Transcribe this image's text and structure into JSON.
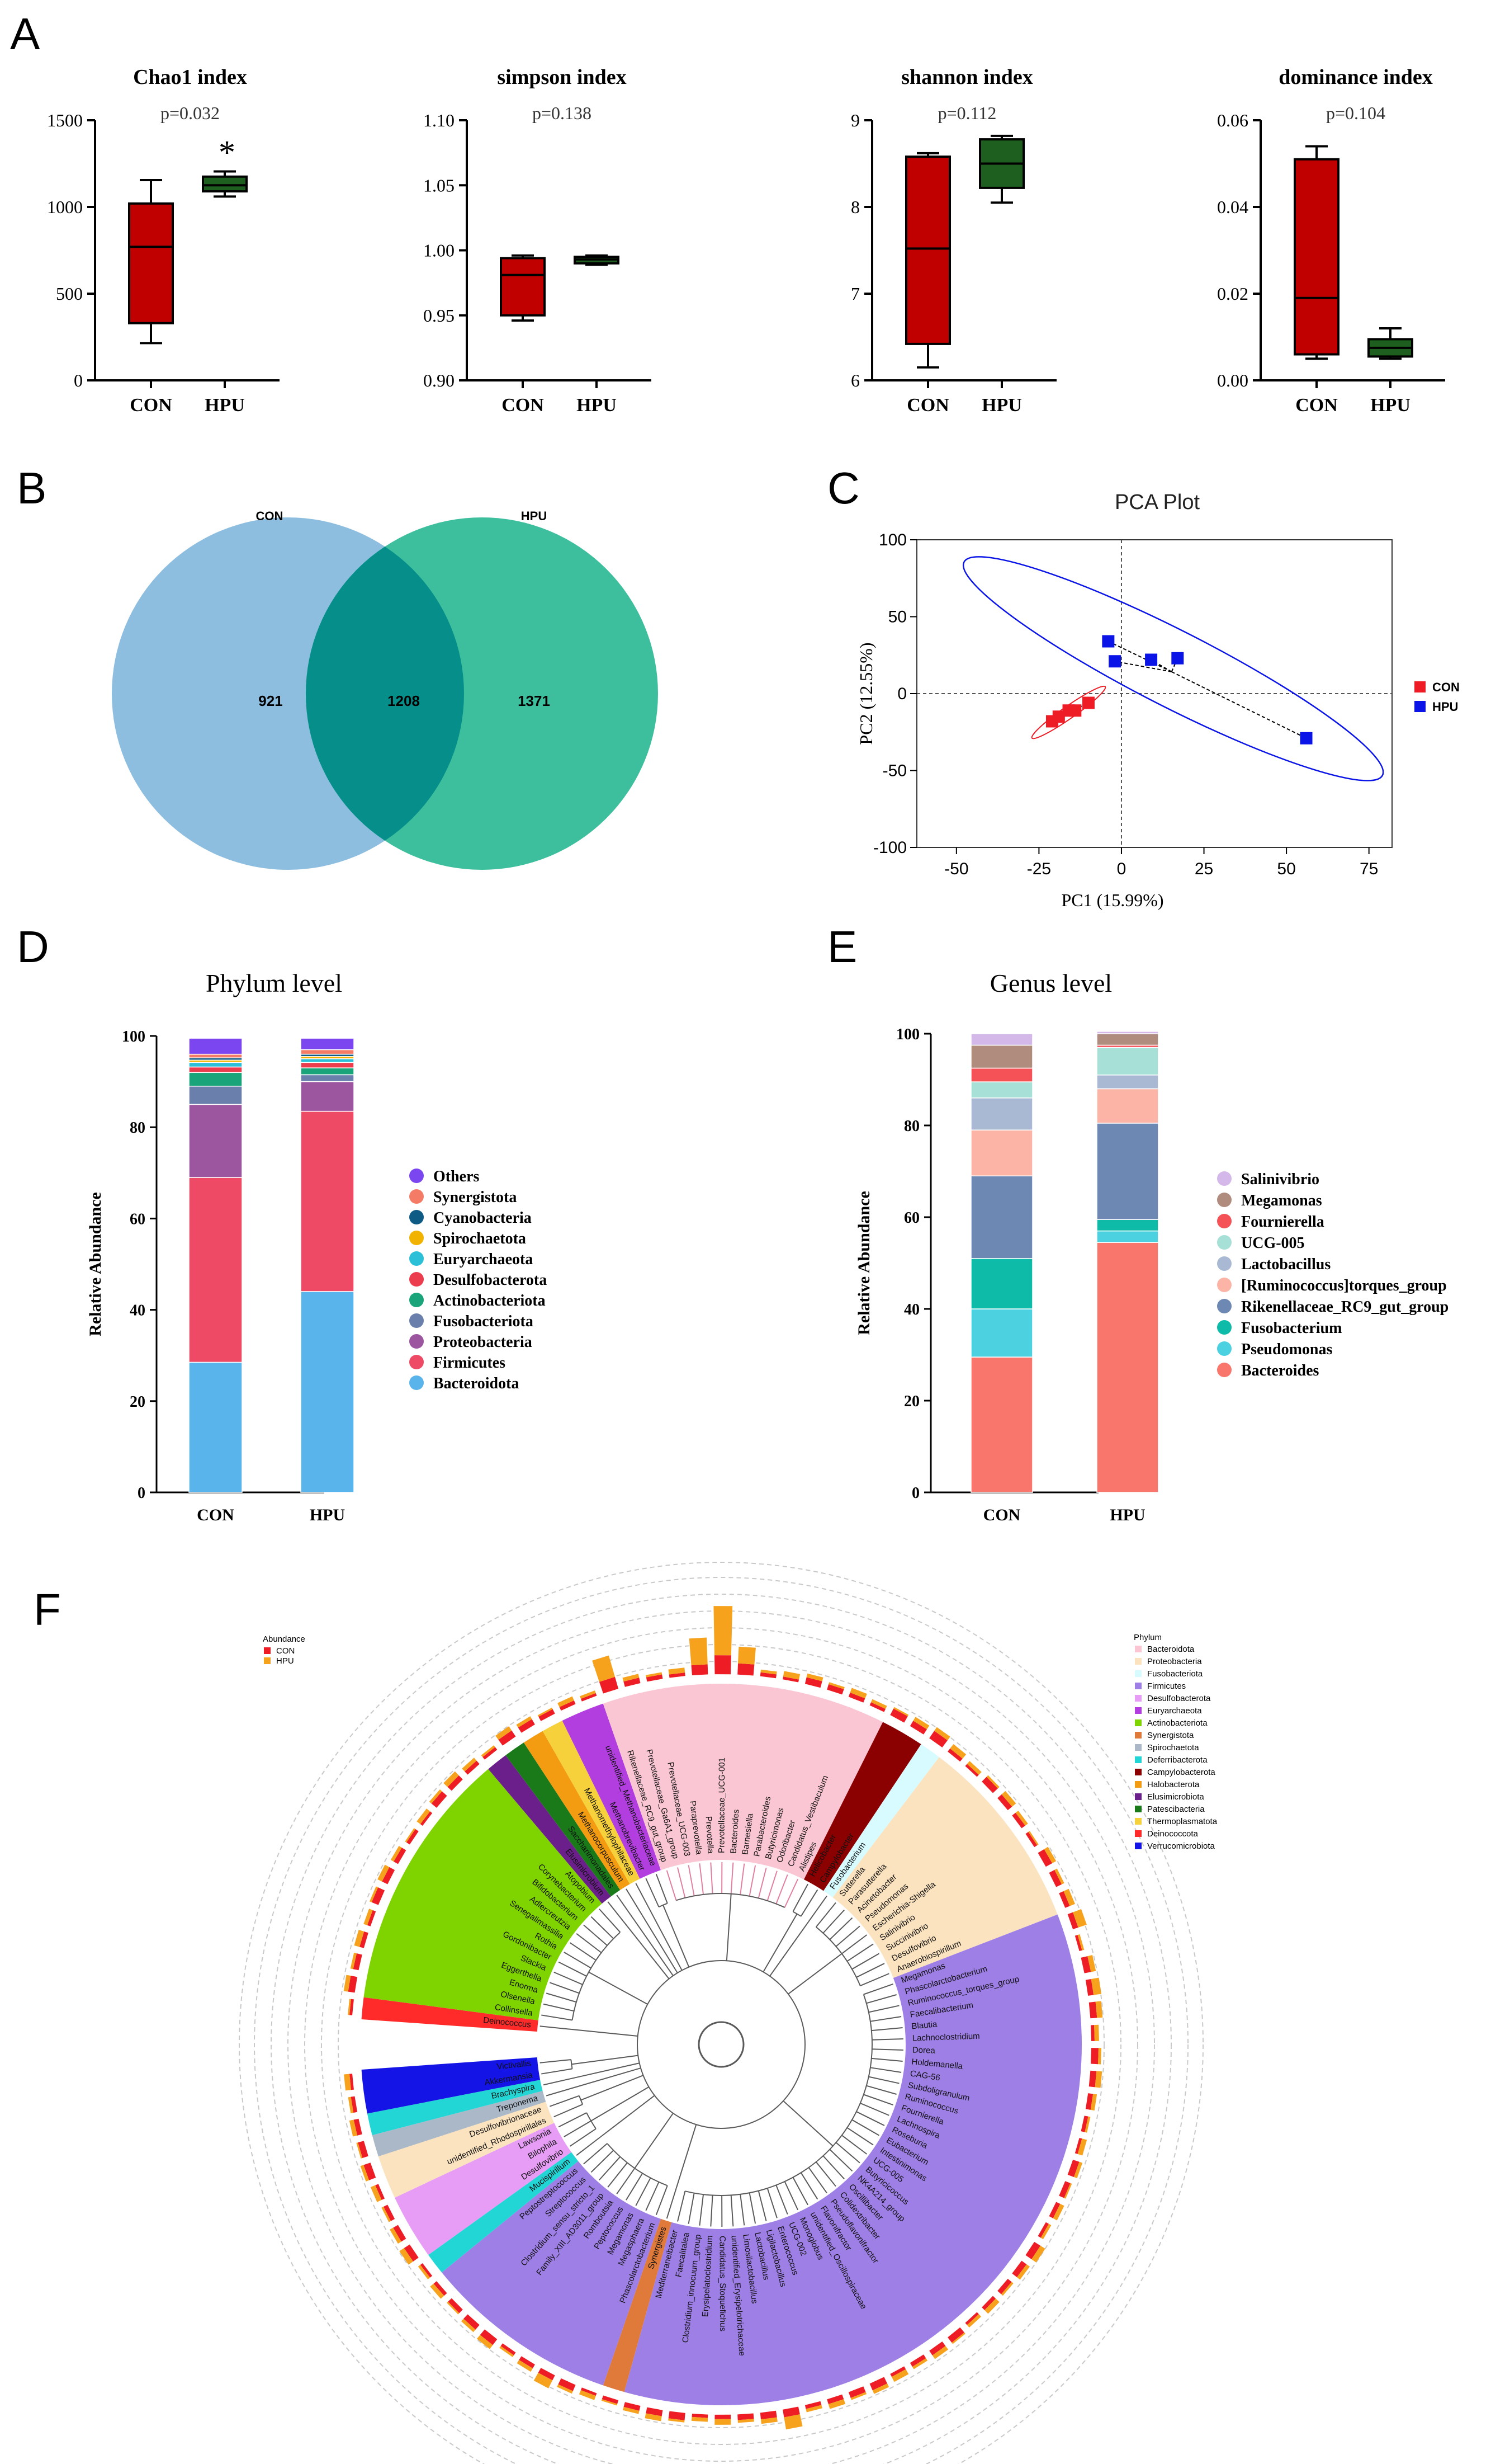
{
  "panels": {
    "A": "A",
    "B": "B",
    "C": "C",
    "D": "D",
    "E": "E",
    "F": "F"
  },
  "groups": [
    "CON",
    "HPU"
  ],
  "chart_data": [
    {
      "id": "A1",
      "type": "box",
      "title": "Chao1 index",
      "pvalue": "p=0.032",
      "star": "*",
      "ylim": [
        0,
        1500
      ],
      "ticks": [
        0,
        500,
        1000,
        1500
      ],
      "boxes": [
        {
          "group": "CON",
          "min": 215,
          "q1": 330,
          "median": 770,
          "q3": 1020,
          "max": 1155,
          "color": "#c00000"
        },
        {
          "group": "HPU",
          "min": 1060,
          "q1": 1090,
          "median": 1125,
          "q3": 1175,
          "max": 1205,
          "color": "#1e5e1e"
        }
      ]
    },
    {
      "id": "A2",
      "type": "box",
      "title": "simpson index",
      "pvalue": "p=0.138",
      "ylim": [
        0.9,
        1.1
      ],
      "ticks": [
        0.9,
        0.95,
        1.0,
        1.05,
        1.1
      ],
      "boxes": [
        {
          "group": "CON",
          "min": 0.946,
          "q1": 0.95,
          "median": 0.981,
          "q3": 0.994,
          "max": 0.996,
          "color": "#c00000"
        },
        {
          "group": "HPU",
          "min": 0.989,
          "q1": 0.99,
          "median": 0.993,
          "q3": 0.995,
          "max": 0.996,
          "color": "#1e5e1e"
        }
      ]
    },
    {
      "id": "A3",
      "type": "box",
      "title": "shannon index",
      "pvalue": "p=0.112",
      "ylim": [
        6,
        9
      ],
      "ticks": [
        6,
        7,
        8,
        9
      ],
      "boxes": [
        {
          "group": "CON",
          "min": 6.15,
          "q1": 6.42,
          "median": 7.52,
          "q3": 8.58,
          "max": 8.62,
          "color": "#c00000"
        },
        {
          "group": "HPU",
          "min": 8.05,
          "q1": 8.22,
          "median": 8.5,
          "q3": 8.78,
          "max": 8.82,
          "color": "#1e5e1e"
        }
      ]
    },
    {
      "id": "A4",
      "type": "box",
      "title": "dominance index",
      "pvalue": "p=0.104",
      "ylim": [
        0,
        0.06
      ],
      "ticks": [
        0.0,
        0.02,
        0.04,
        0.06
      ],
      "boxes": [
        {
          "group": "CON",
          "min": 0.005,
          "q1": 0.006,
          "median": 0.019,
          "q3": 0.051,
          "max": 0.054,
          "color": "#c00000"
        },
        {
          "group": "HPU",
          "min": 0.005,
          "q1": 0.0055,
          "median": 0.0075,
          "q3": 0.0095,
          "max": 0.012,
          "color": "#1e5e1e"
        }
      ]
    },
    {
      "id": "B",
      "type": "venn",
      "labels": [
        "CON",
        "HPU"
      ],
      "only_a": "921",
      "shared": "1208",
      "only_b": "1371",
      "colors": {
        "a": "#8dbedf",
        "b": "#3dbf9e",
        "overlap": "#068f8a"
      }
    },
    {
      "id": "C",
      "type": "scatter",
      "title": "PCA Plot",
      "xlabel": "PC1 (15.99%)",
      "ylabel": "PC2 (12.55%)",
      "xlim": [
        -62,
        82
      ],
      "ylim": [
        -100,
        100
      ],
      "xticks": [
        -50,
        -25,
        0,
        25,
        50,
        75
      ],
      "yticks": [
        -100,
        -50,
        0,
        50,
        100
      ],
      "series": [
        {
          "name": "CON",
          "color": "#ee1c25",
          "points": [
            [
              -21,
              -18
            ],
            [
              -19,
              -15
            ],
            [
              -16,
              -11
            ],
            [
              -14,
              -11
            ],
            [
              -10,
              -6
            ]
          ]
        },
        {
          "name": "HPU",
          "color": "#0a14e6",
          "points": [
            [
              -4,
              34
            ],
            [
              -2,
              21
            ],
            [
              9,
              22
            ],
            [
              17,
              23
            ],
            [
              56,
              -29
            ]
          ]
        }
      ]
    },
    {
      "id": "D",
      "type": "stacked-bar",
      "title": "Phylum level",
      "ylabel": "Relative Abundance",
      "categories": [
        "CON",
        "HPU"
      ],
      "ylim": [
        0,
        100
      ],
      "ticks": [
        0,
        20,
        40,
        60,
        80,
        100
      ],
      "series": [
        {
          "name": "Bacteroidota",
          "color": "#5ab4ec",
          "values": [
            28.5,
            44
          ]
        },
        {
          "name": "Firmicutes",
          "color": "#ef4a65",
          "values": [
            40.5,
            39.5
          ]
        },
        {
          "name": "Proteobacteria",
          "color": "#9c56a0",
          "values": [
            16,
            6.5
          ]
        },
        {
          "name": "Fusobacteriota",
          "color": "#6b7fad",
          "values": [
            4,
            1.5
          ]
        },
        {
          "name": "Actinobacteriota",
          "color": "#19a479",
          "values": [
            3,
            1.5
          ]
        },
        {
          "name": "Desulfobacterota",
          "color": "#ec3d4e",
          "values": [
            1.2,
            1.2
          ]
        },
        {
          "name": "Euryarchaeota",
          "color": "#2bc0d8",
          "values": [
            1,
            0.8
          ]
        },
        {
          "name": "Spirochaetota",
          "color": "#f2b300",
          "values": [
            0.5,
            0.5
          ]
        },
        {
          "name": "Cyanobacteria",
          "color": "#0e5c86",
          "values": [
            0.5,
            0.5
          ]
        },
        {
          "name": "Synergistota",
          "color": "#f47c66",
          "values": [
            0.8,
            1
          ]
        },
        {
          "name": "Others",
          "color": "#7b46f0",
          "values": [
            3.5,
            2.5
          ]
        }
      ]
    },
    {
      "id": "E",
      "type": "stacked-bar",
      "title": "Genus level",
      "ylabel": "Relative Abundance",
      "categories": [
        "CON",
        "HPU"
      ],
      "ylim": [
        0,
        100
      ],
      "ticks": [
        0,
        20,
        40,
        60,
        80,
        100
      ],
      "series": [
        {
          "name": "Bacteroides",
          "color": "#f9766c",
          "values": [
            29.5,
            54.5
          ]
        },
        {
          "name": "Pseudomonas",
          "color": "#4bd1df",
          "values": [
            10.5,
            2.5
          ]
        },
        {
          "name": "Fusobacterium",
          "color": "#0ebaa8",
          "values": [
            11,
            2.5
          ]
        },
        {
          "name": "Rikenellaceae_RC9_gut_group",
          "color": "#6e88b4",
          "values": [
            18,
            21
          ]
        },
        {
          "name": "[Ruminococcus]torques_group",
          "color": "#fbb4a6",
          "values": [
            10,
            7.5
          ]
        },
        {
          "name": "Lactobacillus",
          "color": "#a9b9d4",
          "values": [
            7,
            3
          ]
        },
        {
          "name": "UCG-005",
          "color": "#a6e0d6",
          "values": [
            3.5,
            6
          ]
        },
        {
          "name": "Fournierella",
          "color": "#f55257",
          "values": [
            3,
            0.5
          ]
        },
        {
          "name": "Megamonas",
          "color": "#b08c7e",
          "values": [
            5,
            2.5
          ]
        },
        {
          "name": "Salinivibrio",
          "color": "#d3b8e9",
          "values": [
            2.5,
            0.5
          ]
        }
      ]
    },
    {
      "id": "F",
      "type": "circular-tree",
      "abundance_legend": {
        "title": "Abundance",
        "items": [
          {
            "name": "CON",
            "color": "#ee1c25"
          },
          {
            "name": "HPU",
            "color": "#f7a21c"
          }
        ]
      },
      "phylum_legend": {
        "title": "Phylum",
        "items": [
          {
            "name": "Bacteroidota",
            "color": "#fbc6d3"
          },
          {
            "name": "Proteobacteria",
            "color": "#fbe3c0"
          },
          {
            "name": "Fusobacteriota",
            "color": "#d8fbff"
          },
          {
            "name": "Firmicutes",
            "color": "#9e7fe6"
          },
          {
            "name": "Desulfobacterota",
            "color": "#e79df5"
          },
          {
            "name": "Euryarchaeota",
            "color": "#b23ee0"
          },
          {
            "name": "Actinobacteriota",
            "color": "#7fd400"
          },
          {
            "name": "Synergistota",
            "color": "#e07a3a"
          },
          {
            "name": "Spirochaetota",
            "color": "#aab8c8"
          },
          {
            "name": "Deferribacterota",
            "color": "#23d6d6"
          },
          {
            "name": "Campylobacterota",
            "color": "#8b0000"
          },
          {
            "name": "Halobacterota",
            "color": "#f39c12"
          },
          {
            "name": "Elusimicrobiota",
            "color": "#6b1f8a"
          },
          {
            "name": "Patescibacteria",
            "color": "#1a7a1a"
          },
          {
            "name": "Thermoplasmatota",
            "color": "#f6d13b"
          },
          {
            "name": "Deinococcota",
            "color": "#ff2a2a"
          },
          {
            "name": "Verrucomicrobiota",
            "color": "#1414e6"
          }
        ]
      },
      "sectors": [
        {
          "phylum": "Deinococcota",
          "genera": [
            "Deinococcus"
          ]
        },
        {
          "phylum": "Actinobacteriota",
          "genera": [
            "Collinsella",
            "Olsenella",
            "Enorma",
            "Eggerthella",
            "Slackia",
            "Gordonibacter",
            "Rothia",
            "Senegalimassilia",
            "Adlercreutzia",
            "Bifidobacterium",
            "Corynebacterium",
            "Atopobium"
          ]
        },
        {
          "phylum": "Elusimicrobiota",
          "genera": [
            "Elusimicrobium"
          ]
        },
        {
          "phylum": "Patescibacteria",
          "genera": [
            "Saccharimonadales"
          ]
        },
        {
          "phylum": "Halobacterota",
          "genera": [
            "Methanocorpusculum"
          ]
        },
        {
          "phylum": "Thermoplasmatota",
          "genera": [
            "Methanomethylophilaceae"
          ]
        },
        {
          "phylum": "Euryarchaeota",
          "genera": [
            "Methanobrevibacter",
            "unidentified_Methanobacteriaceae"
          ]
        },
        {
          "phylum": "Bacteroidota",
          "genera": [
            "Rikenellaceae_RC9_gut_group",
            "Prevotellaceae_Ga6A1_group",
            "Prevotellaceae_UCG-003",
            "Paraprevotella",
            "Prevotella",
            "Prevotellaceae_UCG-001",
            "Bacteroides",
            "Barnesiella",
            "Parabacteroides",
            "Butyricimonas",
            "Odoribacter",
            "Candidatus_Vestibaculum",
            "Alistipes"
          ]
        },
        {
          "phylum": "Campylobacterota",
          "genera": [
            "Helicobacter",
            "Campylobacter"
          ]
        },
        {
          "phylum": "Fusobacteriota",
          "genera": [
            "Fusobacterium"
          ]
        },
        {
          "phylum": "Proteobacteria",
          "genera": [
            "Sutterella",
            "Parasutterella",
            "Acinetobacter",
            "Pseudomonas",
            "Escherichia-Shigella",
            "Salinivibrio",
            "Succinivibrio",
            "Desulfovibrio",
            "Anaerobiospirillum"
          ]
        },
        {
          "phylum": "Firmicutes",
          "genera": [
            "Megamonas",
            "Phascolarctobacterium",
            "Ruminococcus_torques_group",
            "Faecalibacterium",
            "Blautia",
            "Lachnoclostridium",
            "Dorea",
            "Holdemanella",
            "CAG-56",
            "Subdoligranulum",
            "Ruminococcus",
            "Fournierella",
            "Lachnospira",
            "Roseburia",
            "Eubacterium",
            "Intestinimonas",
            "UCG-005",
            "Butyricicoccus",
            "NK4A214_group",
            "Oscillibacter",
            "Colidextribacter",
            "Pseudoflavonifractor",
            "Flavonifractor",
            "unidentified_Oscillospiraceae",
            "Monoglobus",
            "UCG-002",
            "Enterococcus",
            "Ligilactobacillus",
            "Lactobacillus",
            "Limosilactobacillus",
            "unidentified_Erysipelotrichaceae",
            "Candidatus_Stoquefichus",
            "Erysipelatoclostridium",
            "Clostridium_innocuum_group",
            "Faecalitalea",
            "Mediterraneibacter"
          ]
        },
        {
          "phylum": "Synergistota",
          "genera": [
            "Synergistes"
          ]
        },
        {
          "phylum": "Firmicutes",
          "genera": [
            "Phascolarctobacterium",
            "Megasphaera",
            "Megamonas",
            "Peptococcus",
            "Romboutsia",
            "Family_XIII_AD3011_group",
            "Clostridium_sensu_stricto_1",
            "Streptococcus",
            "Peptostreptococcus"
          ]
        },
        {
          "phylum": "Deferribacterota",
          "genera": [
            "Mucispirillum"
          ]
        },
        {
          "phylum": "Desulfobacterota",
          "genera": [
            "Desulfovibrio",
            "Bilophila",
            "Lawsonia"
          ]
        },
        {
          "phylum": "Proteobacteria",
          "genera": [
            "unidentified_Rhodospirillales",
            "Desulfovibrionaceae"
          ]
        },
        {
          "phylum": "Spirochaetota",
          "genera": [
            "Treponema"
          ]
        },
        {
          "phylum": "Deferribacterota",
          "genera": [
            "Brachyspira"
          ]
        },
        {
          "phylum": "Verrucomicrobiota",
          "genera": [
            "Akkermansia",
            "Victivallis"
          ]
        }
      ]
    }
  ]
}
